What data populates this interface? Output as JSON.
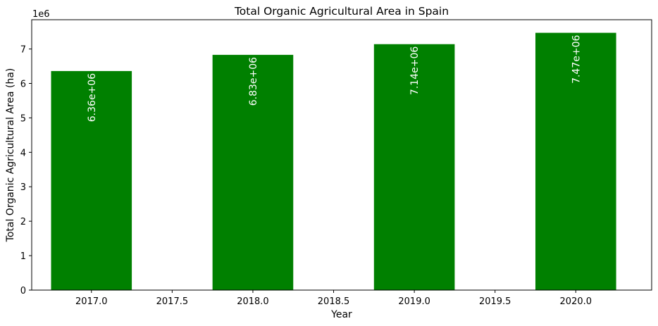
{
  "chart_data": {
    "type": "bar",
    "title": "Total Organic Agricultural Area in Spain",
    "xlabel": "Year",
    "ylabel": "Total Organic Agricultural Area (ha)",
    "y_scale_label": "1e6",
    "y_scale": 1000000,
    "bar_color": "#008000",
    "bar_label_color": "#ffffff",
    "bar_width": 0.5,
    "xlim": [
      2016.63,
      2020.47
    ],
    "ylim": [
      0,
      7850000
    ],
    "x": [
      2017,
      2018,
      2019,
      2020
    ],
    "values": [
      6360000,
      6830000,
      7140000,
      7470000
    ],
    "data_labels": [
      "6.36e+06",
      "6.83e+06",
      "7.14e+06",
      "7.47e+06"
    ],
    "x_ticks": [
      2017.0,
      2017.5,
      2018.0,
      2018.5,
      2019.0,
      2019.5,
      2020.0
    ],
    "x_tick_labels": [
      "2017.0",
      "2017.5",
      "2018.0",
      "2018.5",
      "2019.0",
      "2019.5",
      "2020.0"
    ],
    "y_ticks": [
      0,
      1000000,
      2000000,
      3000000,
      4000000,
      5000000,
      6000000,
      7000000
    ],
    "y_tick_labels": [
      "0",
      "1",
      "2",
      "3",
      "4",
      "5",
      "6",
      "7"
    ],
    "grid": false,
    "legend": "none"
  }
}
